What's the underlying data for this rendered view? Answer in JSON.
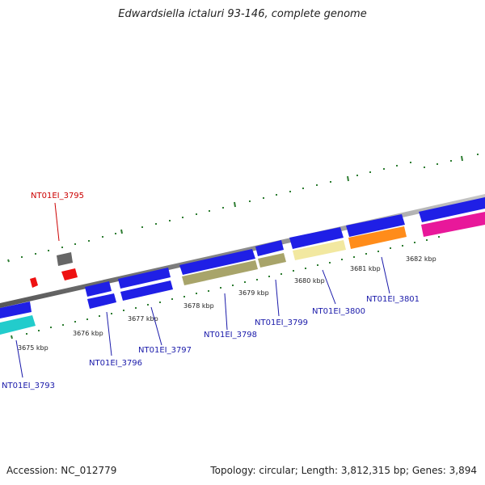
{
  "title": "Edwardsiella ictaluri 93-146, complete genome",
  "footer": {
    "accession": "Accession: NC_012779",
    "topology": "Topology: circular; Length: 3,812,315 bp; Genes: 3,894"
  },
  "kbp_labels": [
    "3675 kbp",
    "3676 kbp",
    "3677 kbp",
    "3678 kbp",
    "3679 kbp",
    "3680 kbp",
    "3681 kbp",
    "3682 kbp"
  ],
  "gene_labels": [
    {
      "text": "NT01EI_3795",
      "color": "#cc0000"
    },
    {
      "text": "NT01EI_3793",
      "color": "#1a1aaa"
    },
    {
      "text": "NT01EI_3796",
      "color": "#1a1aaa"
    },
    {
      "text": "NT01EI_3797",
      "color": "#1a1aaa"
    },
    {
      "text": "NT01EI_3798",
      "color": "#1a1aaa"
    },
    {
      "text": "NT01EI_3799",
      "color": "#1a1aaa"
    },
    {
      "text": "NT01EI_3800",
      "color": "#1a1aaa"
    },
    {
      "text": "NT01EI_3801",
      "color": "#1a1aaa"
    }
  ],
  "colors": {
    "backbone": "#8a8a8a",
    "tick": "#2e7d32",
    "gene_blue": "#1f1fe6",
    "gene_cyan": "#22cccc",
    "gene_olive": "#a8a46a",
    "gene_yellow": "#f2e8a0",
    "gene_orange": "#ff8c1a",
    "gene_magenta": "#e8189a",
    "gene_red": "#ee1111",
    "gene_gray": "#666666"
  }
}
